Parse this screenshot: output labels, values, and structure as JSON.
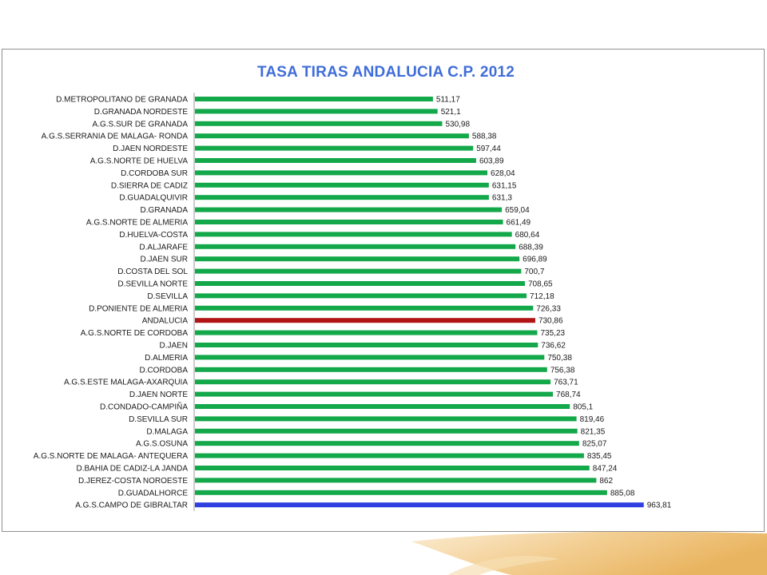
{
  "chart_data": {
    "type": "bar",
    "orientation": "horizontal",
    "title": "TASA TIRAS ANDALUCIA C.P. 2012",
    "xlim": [
      0,
      1000
    ],
    "grid": false,
    "legend": "none",
    "colors": {
      "default": "#13a84a",
      "highlight": "#b01414",
      "max": "#2f3fe0"
    },
    "categories": [
      "D.METROPOLITANO DE GRANADA",
      "D.GRANADA NORDESTE",
      "A.G.S.SUR DE GRANADA",
      "A.G.S.SERRANIA DE MALAGA- RONDA",
      "D.JAEN NORDESTE",
      "A.G.S.NORTE DE HUELVA",
      "D.CORDOBA SUR",
      "D.SIERRA DE CADIZ",
      "D.GUADALQUIVIR",
      "D.GRANADA",
      "A.G.S.NORTE DE ALMERIA",
      "D.HUELVA-COSTA",
      "D.ALJARAFE",
      "D.JAEN SUR",
      "D.COSTA DEL SOL",
      "D.SEVILLA NORTE",
      "D.SEVILLA",
      "D.PONIENTE DE ALMERIA",
      "ANDALUCIA",
      "A.G.S.NORTE DE CORDOBA",
      "D.JAEN",
      "D.ALMERIA",
      "D.CORDOBA",
      "A.G.S.ESTE MALAGA-AXARQUIA",
      "D.JAEN NORTE",
      "D.CONDADO-CAMPIÑA",
      "D.SEVILLA SUR",
      "D.MALAGA",
      "A.G.S.OSUNA",
      "A.G.S.NORTE DE MALAGA- ANTEQUERA",
      "D.BAHIA DE CADIZ-LA JANDA",
      "D.JEREZ-COSTA NOROESTE",
      "D.GUADALHORCE",
      "A.G.S.CAMPO DE GIBRALTAR"
    ],
    "values": [
      511.17,
      521.1,
      530.98,
      588.38,
      597.44,
      603.89,
      628.04,
      631.15,
      631.3,
      659.04,
      661.49,
      680.64,
      688.39,
      696.89,
      700.7,
      708.65,
      712.18,
      726.33,
      730.86,
      735.23,
      736.62,
      750.38,
      756.38,
      763.71,
      768.74,
      805.1,
      819.46,
      821.35,
      825.07,
      835.45,
      847.24,
      862,
      885.08,
      963.81
    ],
    "value_labels": [
      "511,17",
      "521,1",
      "530,98",
      "588,38",
      "597,44",
      "603,89",
      "628,04",
      "631,15",
      "631,3",
      "659,04",
      "661,49",
      "680,64",
      "688,39",
      "696,89",
      "700,7",
      "708,65",
      "712,18",
      "726,33",
      "730,86",
      "735,23",
      "736,62",
      "750,38",
      "756,38",
      "763,71",
      "768,74",
      "805,1",
      "819,46",
      "821,35",
      "825,07",
      "835,45",
      "847,24",
      "862",
      "885,08",
      "963,81"
    ],
    "highlight_index": 18,
    "max_index": 33
  }
}
